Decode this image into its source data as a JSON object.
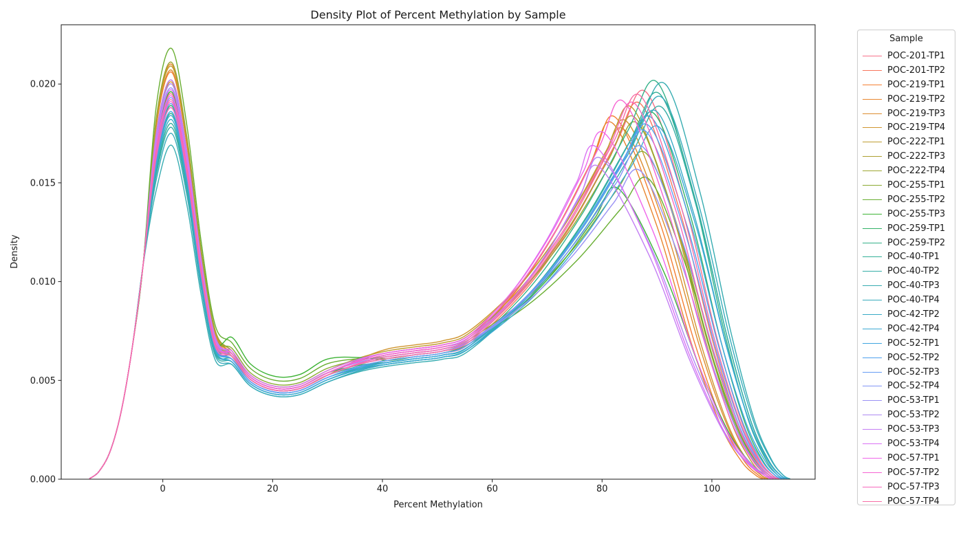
{
  "chart_data": {
    "type": "line",
    "subtype": "kde-density",
    "title": "Density Plot of Percent Methylation by Sample",
    "xlabel": "Percent Methylation",
    "ylabel": "Density",
    "legend_title": "Sample",
    "legend_position": "right-outside",
    "grid": false,
    "xlim": [
      -18.5,
      118.8
    ],
    "ylim": [
      0,
      0.023
    ],
    "x_ticks": [
      0,
      20,
      40,
      60,
      80,
      100
    ],
    "y_ticks": [
      "0.000",
      "0.005",
      "0.010",
      "0.015",
      "0.020"
    ],
    "curve_shape_note": "bimodal KDE: narrow peak near x=1.6, trough near x=20, low shoulder near x=46, broad right peak, tail to ~x=113",
    "series": [
      {
        "name": "POC-201-TP1",
        "color": "#f77189",
        "curve": {
          "p1": 0.0195,
          "tr": 0.0045,
          "sh": 0.0063,
          "p2x": 88.0,
          "p2": 0.0196,
          "xe": 111.0
        }
      },
      {
        "name": "POC-201-TP2",
        "color": "#f7755c",
        "curve": {
          "p1": 0.019,
          "tr": 0.0044,
          "sh": 0.0062,
          "p2x": 87.0,
          "p2": 0.019,
          "xe": 110.5
        }
      },
      {
        "name": "POC-219-TP1",
        "color": "#f47e32",
        "curve": {
          "p1": 0.0206,
          "tr": 0.0045,
          "sh": 0.0064,
          "p2x": 82.5,
          "p2": 0.0183,
          "xe": 108.5
        }
      },
      {
        "name": "POC-219-TP2",
        "color": "#e8862f",
        "curve": {
          "p1": 0.021,
          "tr": 0.0046,
          "sh": 0.0065,
          "p2x": 82.0,
          "p2": 0.018,
          "xe": 108.0
        }
      },
      {
        "name": "POC-219-TP3",
        "color": "#dd8d2f",
        "curve": {
          "p1": 0.0207,
          "tr": 0.0046,
          "sh": 0.0066,
          "p2x": 84.0,
          "p2": 0.0177,
          "xe": 109.0
        }
      },
      {
        "name": "POC-219-TP4",
        "color": "#d09530",
        "curve": {
          "p1": 0.0201,
          "tr": 0.0045,
          "sh": 0.0068,
          "p2x": 84.5,
          "p2": 0.0181,
          "xe": 109.0
        }
      },
      {
        "name": "POC-222-TP1",
        "color": "#bf9c30",
        "curve": {
          "p1": 0.0209,
          "tr": 0.0047,
          "sh": 0.0067,
          "p2x": 85.5,
          "p2": 0.0188,
          "xe": 109.5
        }
      },
      {
        "name": "POC-222-TP3",
        "color": "#ada031",
        "curve": {
          "p1": 0.0196,
          "tr": 0.0046,
          "sh": 0.0065,
          "p2x": 86.0,
          "p2": 0.0183,
          "xe": 110.0
        }
      },
      {
        "name": "POC-222-TP4",
        "color": "#9ca631",
        "curve": {
          "p1": 0.0211,
          "tr": 0.0047,
          "sh": 0.0066,
          "p2x": 86.5,
          "p2": 0.018,
          "xe": 110.0
        }
      },
      {
        "name": "POC-255-TP1",
        "color": "#8aaa32",
        "curve": {
          "p1": 0.0202,
          "tr": 0.0048,
          "sh": 0.0064,
          "p2x": 88.0,
          "p2": 0.0165,
          "xe": 110.5
        }
      },
      {
        "name": "POC-255-TP2",
        "color": "#68ae31",
        "curve": {
          "p1": 0.0218,
          "tr": 0.005,
          "sh": 0.0063,
          "p2x": 88.5,
          "p2": 0.0152,
          "xe": 110.5
        }
      },
      {
        "name": "POC-255-TP3",
        "color": "#3db335",
        "curve": {
          "p1": 0.0196,
          "tr": 0.0052,
          "sh": 0.0062,
          "p2x": 83.0,
          "p2": 0.0147,
          "xe": 110.0
        }
      },
      {
        "name": "POC-259-TP1",
        "color": "#31b266",
        "curve": {
          "p1": 0.0189,
          "tr": 0.0046,
          "sh": 0.0061,
          "p2x": 89.5,
          "p2": 0.0185,
          "xe": 111.5
        }
      },
      {
        "name": "POC-259-TP2",
        "color": "#33b188",
        "curve": {
          "p1": 0.0185,
          "tr": 0.0045,
          "sh": 0.0061,
          "p2x": 90.0,
          "p2": 0.0201,
          "xe": 112.0
        }
      },
      {
        "name": "POC-40-TP1",
        "color": "#33af97",
        "curve": {
          "p1": 0.018,
          "tr": 0.0044,
          "sh": 0.006,
          "p2x": 90.5,
          "p2": 0.0195,
          "xe": 112.5
        }
      },
      {
        "name": "POC-40-TP2",
        "color": "#35ada6",
        "curve": {
          "p1": 0.0178,
          "tr": 0.0043,
          "sh": 0.006,
          "p2x": 91.0,
          "p2": 0.0188,
          "xe": 112.5
        }
      },
      {
        "name": "POC-40-TP3",
        "color": "#36acb1",
        "curve": {
          "p1": 0.0169,
          "tr": 0.0042,
          "sh": 0.0059,
          "p2x": 91.5,
          "p2": 0.02,
          "xe": 113.0
        }
      },
      {
        "name": "POC-40-TP4",
        "color": "#37abbb",
        "curve": {
          "p1": 0.0175,
          "tr": 0.0042,
          "sh": 0.006,
          "p2x": 91.0,
          "p2": 0.0193,
          "xe": 113.0
        }
      },
      {
        "name": "POC-42-TP2",
        "color": "#38aac6",
        "curve": {
          "p1": 0.0182,
          "tr": 0.0043,
          "sh": 0.0061,
          "p2x": 90.0,
          "p2": 0.0186,
          "xe": 112.5
        }
      },
      {
        "name": "POC-42-TP4",
        "color": "#3aa8d3",
        "curve": {
          "p1": 0.0184,
          "tr": 0.0043,
          "sh": 0.006,
          "p2x": 90.5,
          "p2": 0.0178,
          "xe": 112.5
        }
      },
      {
        "name": "POC-52-TP1",
        "color": "#3ea6df",
        "curve": {
          "p1": 0.0186,
          "tr": 0.0044,
          "sh": 0.0061,
          "p2x": 89.0,
          "p2": 0.0183,
          "xe": 112.0
        }
      },
      {
        "name": "POC-52-TP2",
        "color": "#4da0ee",
        "curve": {
          "p1": 0.0188,
          "tr": 0.0044,
          "sh": 0.0062,
          "p2x": 88.5,
          "p2": 0.0179,
          "xe": 111.5
        }
      },
      {
        "name": "POC-52-TP3",
        "color": "#659df4",
        "curve": {
          "p1": 0.019,
          "tr": 0.0044,
          "sh": 0.0062,
          "p2x": 88.0,
          "p2": 0.0176,
          "xe": 111.0
        }
      },
      {
        "name": "POC-52-TP4",
        "color": "#8295f6",
        "curve": {
          "p1": 0.0193,
          "tr": 0.0045,
          "sh": 0.0063,
          "p2x": 87.5,
          "p2": 0.0168,
          "xe": 111.0
        }
      },
      {
        "name": "POC-53-TP1",
        "color": "#9991f5",
        "curve": {
          "p1": 0.0198,
          "tr": 0.0045,
          "sh": 0.0063,
          "p2x": 87.0,
          "p2": 0.0156,
          "xe": 110.5
        }
      },
      {
        "name": "POC-53-TP2",
        "color": "#ad89f3",
        "curve": {
          "p1": 0.02,
          "tr": 0.0046,
          "sh": 0.0064,
          "p2x": 80.0,
          "p2": 0.0162,
          "xe": 110.0
        }
      },
      {
        "name": "POC-53-TP3",
        "color": "#c47ef4",
        "curve": {
          "p1": 0.0202,
          "tr": 0.0046,
          "sh": 0.0065,
          "p2x": 79.5,
          "p2": 0.0158,
          "xe": 109.5
        }
      },
      {
        "name": "POC-53-TP4",
        "color": "#da72f4",
        "curve": {
          "p1": 0.0197,
          "tr": 0.0047,
          "sh": 0.0066,
          "p2x": 79.0,
          "p2": 0.0168,
          "xe": 109.5
        }
      },
      {
        "name": "POC-57-TP1",
        "color": "#ef65ea",
        "curve": {
          "p1": 0.0194,
          "tr": 0.0046,
          "sh": 0.0066,
          "p2x": 80.5,
          "p2": 0.0175,
          "xe": 109.5
        }
      },
      {
        "name": "POC-57-TP2",
        "color": "#f663d2",
        "curve": {
          "p1": 0.0191,
          "tr": 0.0046,
          "sh": 0.0065,
          "p2x": 84.0,
          "p2": 0.0191,
          "xe": 110.0
        }
      },
      {
        "name": "POC-57-TP3",
        "color": "#f768bd",
        "curve": {
          "p1": 0.0188,
          "tr": 0.0045,
          "sh": 0.0064,
          "p2x": 86.0,
          "p2": 0.019,
          "xe": 110.5
        }
      },
      {
        "name": "POC-57-TP4",
        "color": "#f76da6",
        "curve": {
          "p1": 0.0192,
          "tr": 0.0045,
          "sh": 0.0063,
          "p2x": 87.0,
          "p2": 0.0194,
          "xe": 111.0
        }
      }
    ]
  }
}
